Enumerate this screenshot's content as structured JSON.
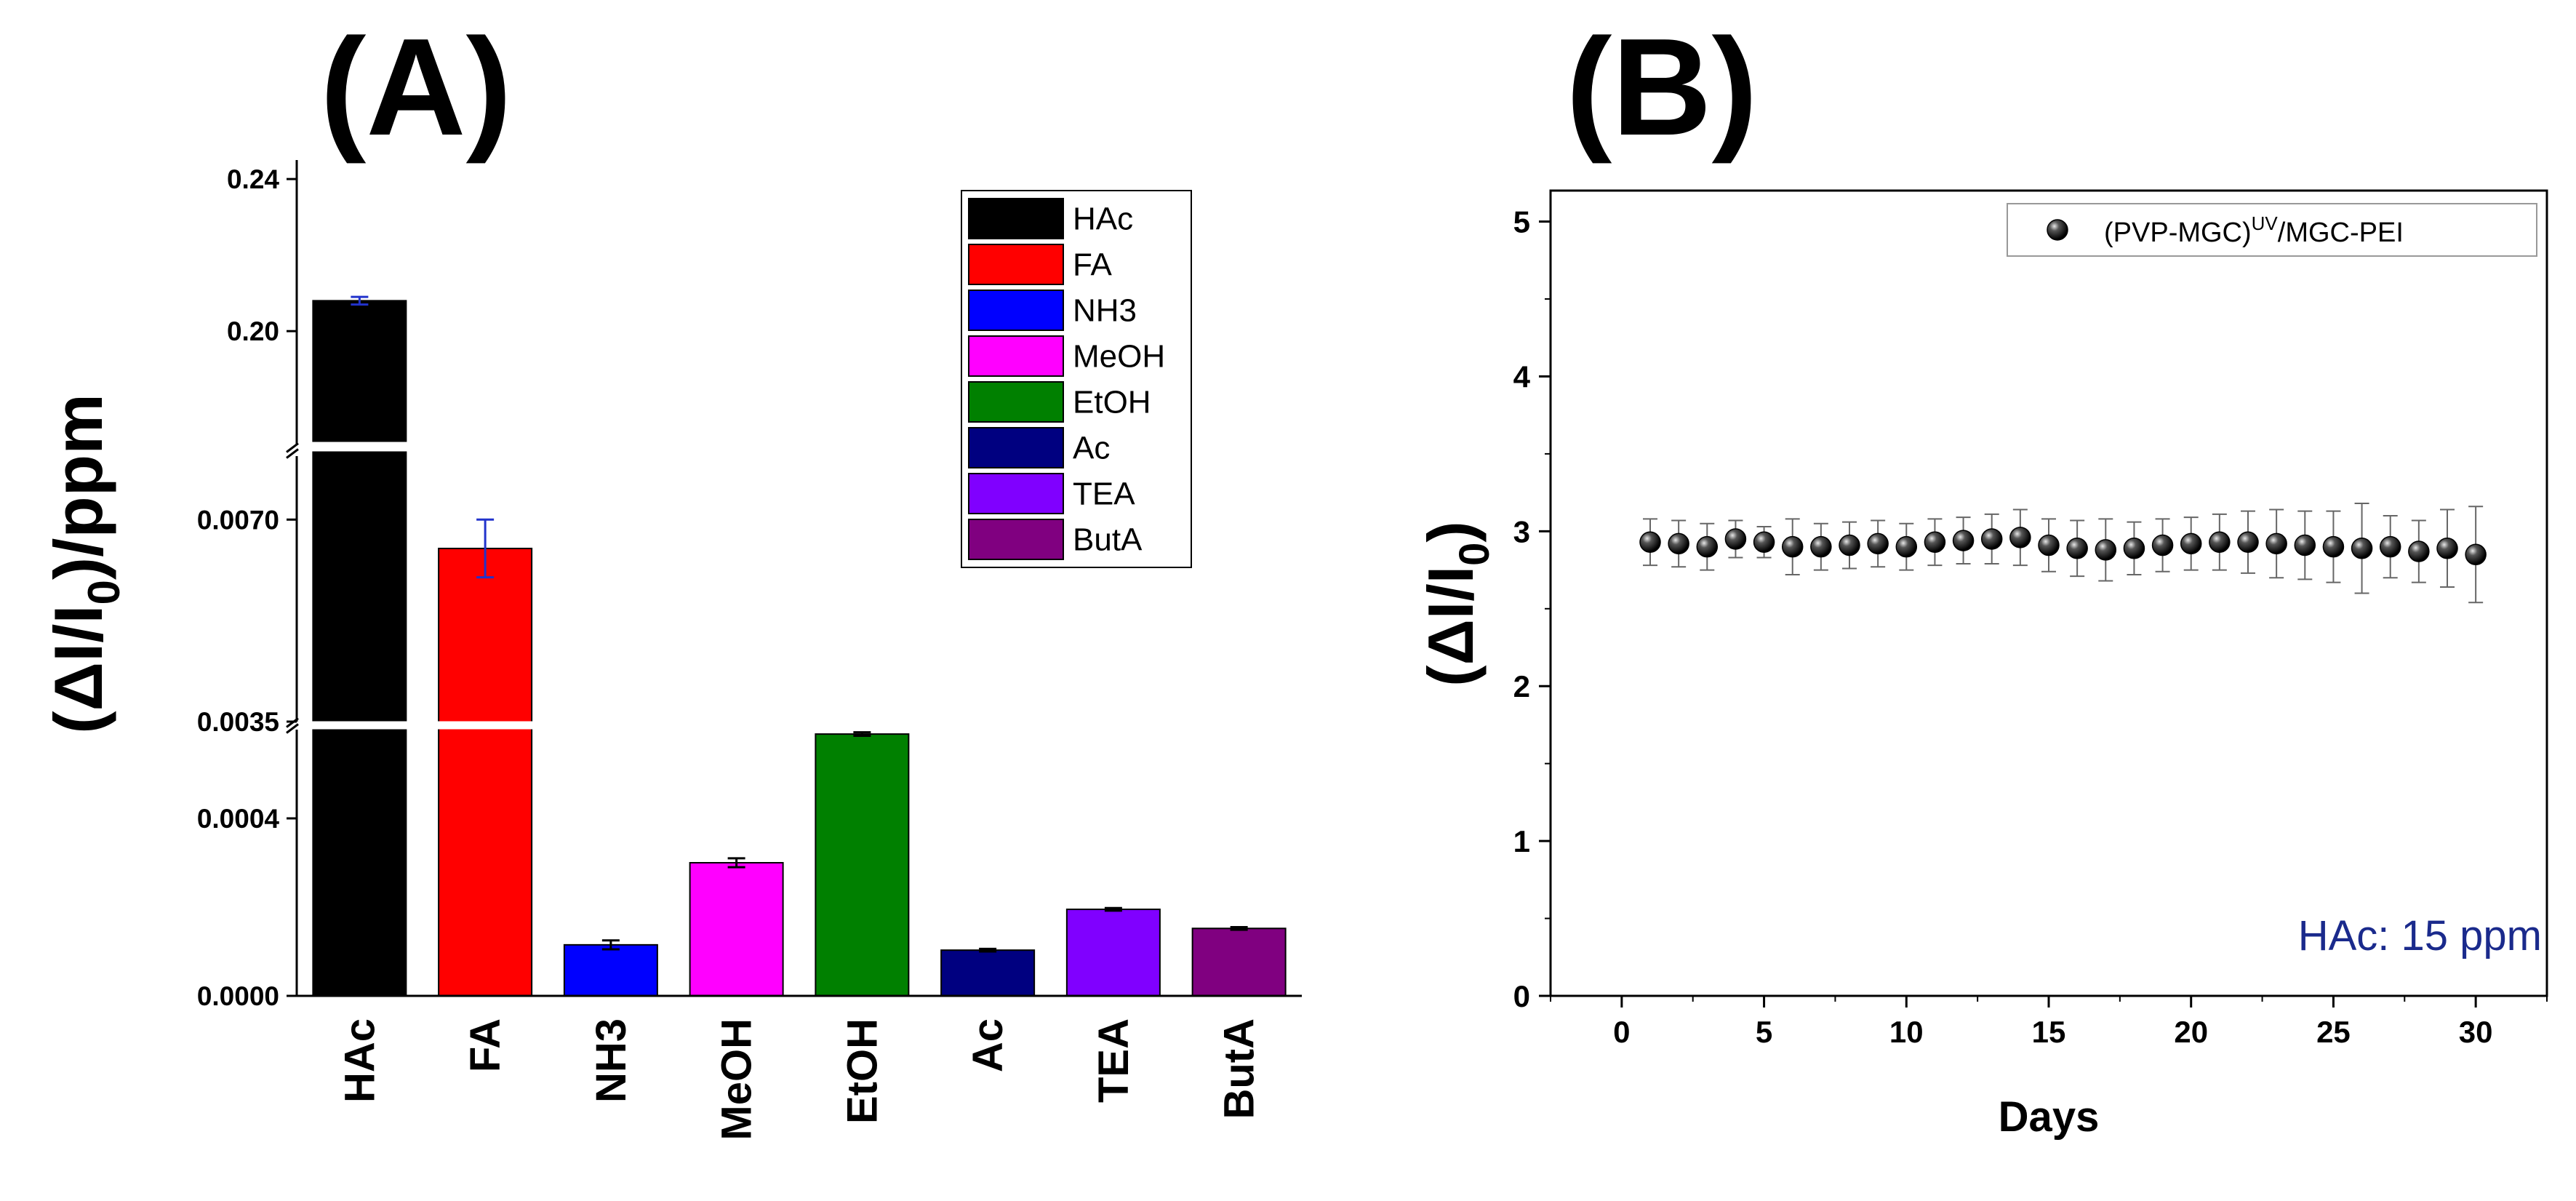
{
  "chart_data": [
    {
      "panel": "(A)",
      "type": "bar",
      "ylabel": "(ΔI/I0)/ppm",
      "ylabel_main": "(ΔI/I",
      "ylabel_sub": "0",
      "ylabel_tail": ")/ppm",
      "y_axis_break": true,
      "y_segments": [
        {
          "range": [
            0,
            0.0006
          ],
          "ticks": [
            "0.0000",
            "0.0004"
          ]
        },
        {
          "range": [
            0.0035,
            0.0081
          ],
          "ticks": [
            "0.0035",
            "0.0070"
          ]
        },
        {
          "range": [
            0.17,
            0.245
          ],
          "ticks": [
            "0.20",
            "0.24"
          ]
        }
      ],
      "categories": [
        "HAc",
        "FA",
        "NH3",
        "MeOH",
        "EtOH",
        "Ac",
        "TEA",
        "ButA"
      ],
      "values": [
        0.208,
        0.0065,
        0.000115,
        0.0003,
        0.00059,
        0.000103,
        0.000195,
        0.000152
      ],
      "errors": [
        0.001,
        0.0005,
        1e-05,
        1e-05,
        4e-06,
        3e-06,
        3e-06,
        3e-06
      ],
      "colors": [
        "#000000",
        "#ff0000",
        "#0000ff",
        "#ff00ff",
        "#008000",
        "#000080",
        "#8000ff",
        "#800080"
      ],
      "legend": [
        "HAc",
        "FA",
        "NH3",
        "MeOH",
        "EtOH",
        "Ac",
        "TEA",
        "ButA"
      ],
      "legend_position": "top-right"
    },
    {
      "panel": "(B)",
      "type": "scatter",
      "xlabel": "Days",
      "ylabel": "(ΔI/I0)",
      "ylabel_main": "(ΔI/I",
      "ylabel_sub": "0",
      "ylabel_tail": ")",
      "xlim": [
        -2.5,
        32.5
      ],
      "ylim": [
        0,
        5.2
      ],
      "xticks": [
        0,
        5,
        10,
        15,
        20,
        25,
        30
      ],
      "yticks": [
        0,
        1,
        2,
        3,
        4,
        5
      ],
      "legend_main": "(PVP-MGC)",
      "legend_sup": "UV",
      "legend_tail": "/MGC-PEI",
      "legend_position": "top-right",
      "annotation": "HAc: 15 ppm",
      "series": [
        {
          "name": "(PVP-MGC)UV/MGC-PEI",
          "x": [
            1,
            2,
            3,
            4,
            5,
            6,
            7,
            8,
            9,
            10,
            11,
            12,
            13,
            14,
            15,
            16,
            17,
            18,
            19,
            20,
            21,
            22,
            23,
            24,
            25,
            26,
            27,
            28,
            29,
            30
          ],
          "y": [
            2.93,
            2.92,
            2.9,
            2.95,
            2.93,
            2.9,
            2.9,
            2.91,
            2.92,
            2.9,
            2.93,
            2.94,
            2.95,
            2.96,
            2.91,
            2.89,
            2.88,
            2.89,
            2.91,
            2.92,
            2.93,
            2.93,
            2.92,
            2.91,
            2.9,
            2.89,
            2.9,
            2.87,
            2.89,
            2.85
          ],
          "err": [
            0.15,
            0.15,
            0.15,
            0.12,
            0.1,
            0.18,
            0.15,
            0.15,
            0.15,
            0.15,
            0.15,
            0.15,
            0.16,
            0.18,
            0.17,
            0.18,
            0.2,
            0.17,
            0.17,
            0.17,
            0.18,
            0.2,
            0.22,
            0.22,
            0.23,
            0.29,
            0.2,
            0.2,
            0.25,
            0.31
          ]
        }
      ]
    }
  ]
}
